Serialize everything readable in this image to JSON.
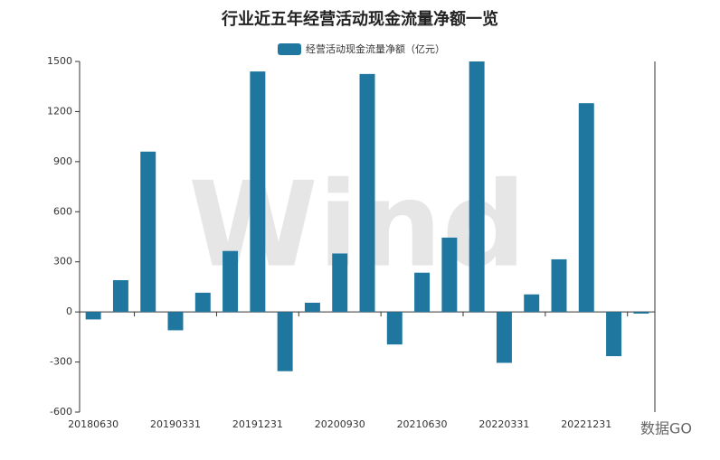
{
  "chart_data": {
    "type": "bar",
    "title": "行业近五年经营活动现金流量净额一览",
    "categories": [
      "20180630",
      null,
      null,
      "20190331",
      null,
      null,
      "20191231",
      null,
      null,
      "20200930",
      null,
      null,
      "20210630",
      null,
      null,
      "20220331",
      null,
      null,
      "20221231",
      null,
      null
    ],
    "series": [
      {
        "name": "经营活动现金流量净额（亿元）",
        "color": "#1f77a0",
        "values": [
          -45,
          190,
          960,
          -110,
          115,
          365,
          1440,
          -355,
          55,
          350,
          1425,
          -195,
          235,
          445,
          1500,
          -305,
          105,
          315,
          1250,
          -265,
          -10
        ]
      }
    ],
    "ylim": [
      -600,
      1500
    ],
    "yticks": [
      -600,
      -300,
      0,
      300,
      600,
      900,
      1200,
      1500
    ],
    "legend": "top",
    "watermark": "Wind",
    "source_mark": "数据GO"
  }
}
